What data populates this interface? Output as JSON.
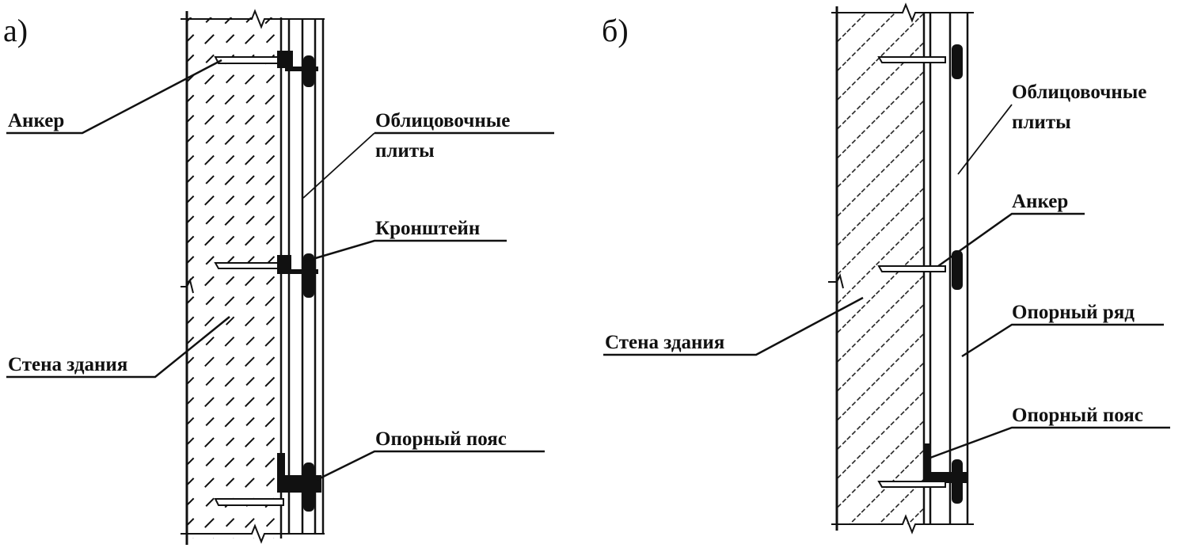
{
  "figure_a": {
    "tag": "а)",
    "labels": {
      "anchor": "Анкер",
      "facing_plates_1": "Облицовочные",
      "facing_plates_2": "плиты",
      "bracket": "Кронштейн",
      "wall": "Стена здания",
      "support_belt": "Опорный пояс"
    }
  },
  "figure_b": {
    "tag": "б)",
    "labels": {
      "facing_plates_1": "Облицовочные",
      "facing_plates_2": "плиты",
      "anchor": "Анкер",
      "support_row": "Опорный ряд",
      "wall": "Стена здания",
      "support_belt": "Опорный пояс"
    }
  },
  "colors": {
    "ink": "#111111",
    "background": "#ffffff"
  }
}
